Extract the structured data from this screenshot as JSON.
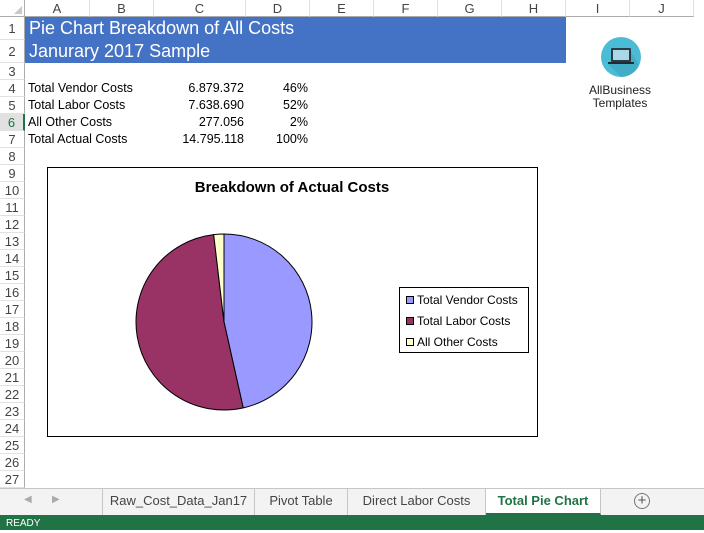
{
  "columns": [
    "A",
    "B",
    "C",
    "D",
    "E",
    "F",
    "G",
    "H",
    "I",
    "J"
  ],
  "rows": [
    "1",
    "2",
    "3",
    "4",
    "5",
    "6",
    "7",
    "8",
    "9",
    "10",
    "11",
    "12",
    "13",
    "14",
    "15",
    "16",
    "17",
    "18",
    "19",
    "20",
    "21",
    "22",
    "23",
    "24",
    "25",
    "26",
    "27"
  ],
  "selected_row": "6",
  "banner": {
    "title": "Pie Chart Breakdown of All Costs",
    "subtitle": "Janurary 2017 Sample",
    "color": "#4472c4"
  },
  "table": [
    {
      "label": "Total Vendor Costs",
      "value": "6.879.372",
      "pct": "46%"
    },
    {
      "label": "Total Labor Costs",
      "value": "7.638.690",
      "pct": "52%"
    },
    {
      "label": "All Other Costs",
      "value": "277.056",
      "pct": "2%"
    },
    {
      "label": "Total Actual Costs",
      "value": "14.795.118",
      "pct": "100%"
    }
  ],
  "logo": {
    "line1": "AllBusiness",
    "line2": "Templates"
  },
  "chart_data": {
    "type": "pie",
    "title": "Breakdown of Actual Costs",
    "categories": [
      "Total Vendor Costs",
      "Total Labor Costs",
      "All Other Costs"
    ],
    "values": [
      6879372,
      7638690,
      277056
    ],
    "colors": [
      "#9999ff",
      "#993366",
      "#ffffcc"
    ],
    "legend": "right"
  },
  "sheet_tabs": [
    {
      "label": "Raw_Cost_Data_Jan17",
      "active": false
    },
    {
      "label": "Pivot Table",
      "active": false
    },
    {
      "label": "Direct Labor Costs",
      "active": false
    },
    {
      "label": "Total Pie Chart",
      "active": true
    }
  ],
  "status": "READY"
}
